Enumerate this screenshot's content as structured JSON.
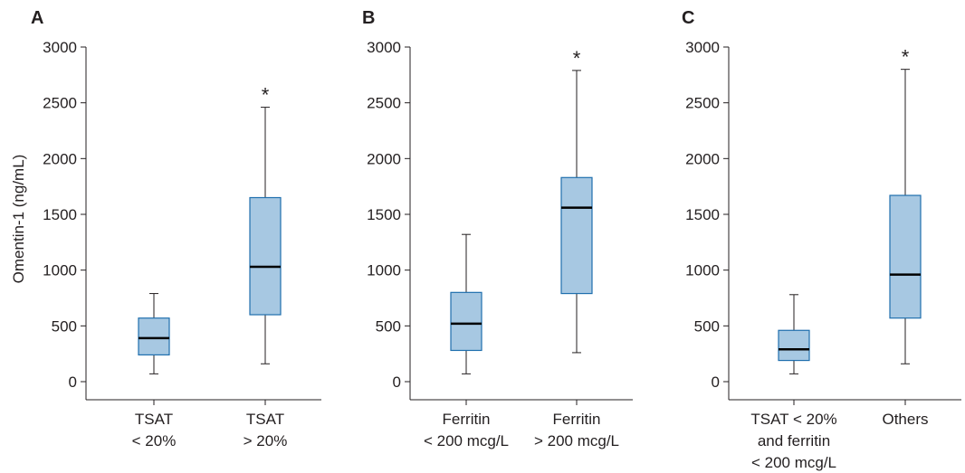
{
  "chart_data": [
    {
      "type": "box",
      "panel_label": "A",
      "ylabel": "Omentin-1 (ng/mL)",
      "ylim": [
        0,
        3000
      ],
      "yticks": [
        0,
        500,
        1000,
        1500,
        2000,
        2500,
        3000
      ],
      "categories": [
        [
          "TSAT",
          "< 20%"
        ],
        [
          "TSAT",
          "> 20%"
        ]
      ],
      "boxes": [
        {
          "whisker_low": 70,
          "q1": 240,
          "median": 390,
          "q3": 570,
          "whisker_high": 790
        },
        {
          "whisker_low": 160,
          "q1": 600,
          "median": 1030,
          "q3": 1650,
          "whisker_high": 2460
        }
      ],
      "annotations": [
        {
          "category_index": 1,
          "text": "*"
        }
      ]
    },
    {
      "type": "box",
      "panel_label": "B",
      "ylabel": "",
      "ylim": [
        0,
        3000
      ],
      "yticks": [
        0,
        500,
        1000,
        1500,
        2000,
        2500,
        3000
      ],
      "categories": [
        [
          "Ferritin",
          "< 200 mcg/L"
        ],
        [
          "Ferritin",
          "> 200 mcg/L"
        ]
      ],
      "boxes": [
        {
          "whisker_low": 70,
          "q1": 280,
          "median": 520,
          "q3": 800,
          "whisker_high": 1320
        },
        {
          "whisker_low": 260,
          "q1": 790,
          "median": 1560,
          "q3": 1830,
          "whisker_high": 2790
        }
      ],
      "annotations": [
        {
          "category_index": 1,
          "text": "*"
        }
      ]
    },
    {
      "type": "box",
      "panel_label": "C",
      "ylabel": "",
      "ylim": [
        0,
        3000
      ],
      "yticks": [
        0,
        500,
        1000,
        1500,
        2000,
        2500,
        3000
      ],
      "categories": [
        [
          "TSAT < 20%",
          "and ferritin",
          "< 200 mcg/L"
        ],
        [
          "Others"
        ]
      ],
      "boxes": [
        {
          "whisker_low": 70,
          "q1": 190,
          "median": 290,
          "q3": 460,
          "whisker_high": 780
        },
        {
          "whisker_low": 160,
          "q1": 570,
          "median": 960,
          "q3": 1670,
          "whisker_high": 2800
        }
      ],
      "annotations": [
        {
          "category_index": 1,
          "text": "*"
        }
      ]
    }
  ],
  "colors": {
    "box_fill": "#a7c8e2",
    "box_stroke": "#1f6fae",
    "median": "#000000",
    "axis": "#231f20"
  }
}
